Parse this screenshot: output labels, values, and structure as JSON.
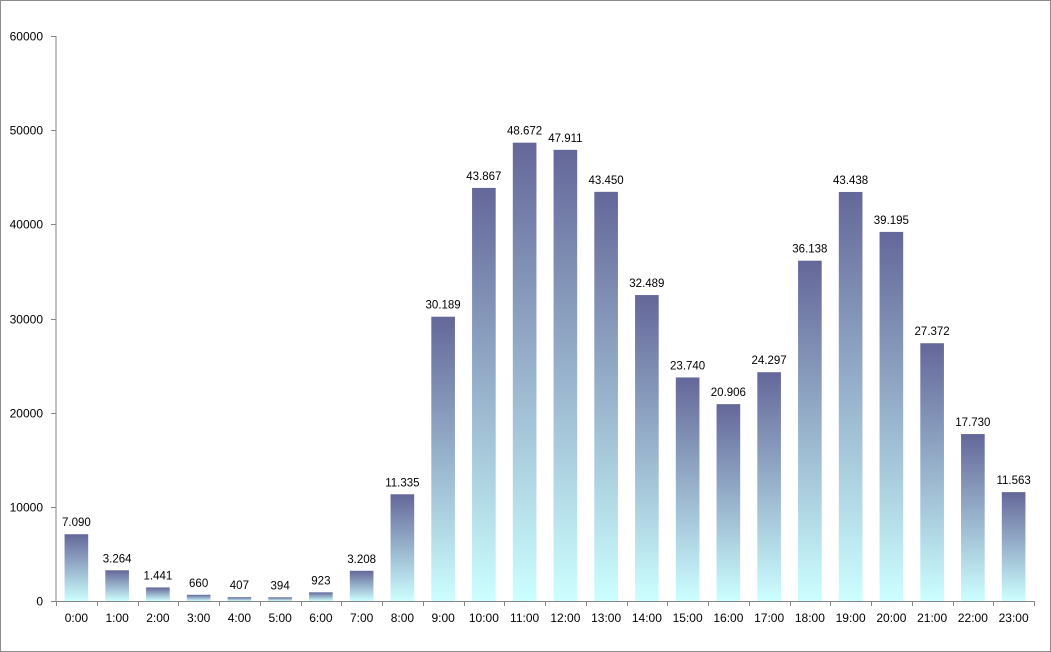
{
  "chart_data": {
    "type": "bar",
    "title": "",
    "xlabel": "",
    "ylabel": "",
    "categories": [
      "0:00",
      "1:00",
      "2:00",
      "3:00",
      "4:00",
      "5:00",
      "6:00",
      "7:00",
      "8:00",
      "9:00",
      "10:00",
      "11:00",
      "12:00",
      "13:00",
      "14:00",
      "15:00",
      "16:00",
      "17:00",
      "18:00",
      "19:00",
      "20:00",
      "21:00",
      "22:00",
      "23:00"
    ],
    "values": [
      7090,
      3264,
      1441,
      660,
      407,
      394,
      923,
      3208,
      11335,
      30189,
      43867,
      48672,
      47911,
      43450,
      32489,
      23740,
      20906,
      24297,
      36138,
      43438,
      39195,
      27372,
      17730,
      11563
    ],
    "data_labels": [
      "7.090",
      "3.264",
      "1.441",
      "660",
      "407",
      "394",
      "923",
      "3.208",
      "11.335",
      "30.189",
      "43.867",
      "48.672",
      "47.911",
      "43.450",
      "32.489",
      "23.740",
      "20.906",
      "24.297",
      "36.138",
      "43.438",
      "39.195",
      "27.372",
      "17.730",
      "11.563"
    ],
    "ylim": [
      0,
      60000
    ],
    "yticks": [
      0,
      10000,
      20000,
      30000,
      40000,
      50000,
      60000
    ],
    "ytick_labels": [
      "0",
      "10000",
      "20000",
      "30000",
      "40000",
      "50000",
      "60000"
    ],
    "grid": false,
    "legend": "none",
    "colors": {
      "bar_top": "#646799",
      "bar_bottom": "#ccffff",
      "axis": "#868686",
      "frame": "#8c8c8c"
    }
  }
}
